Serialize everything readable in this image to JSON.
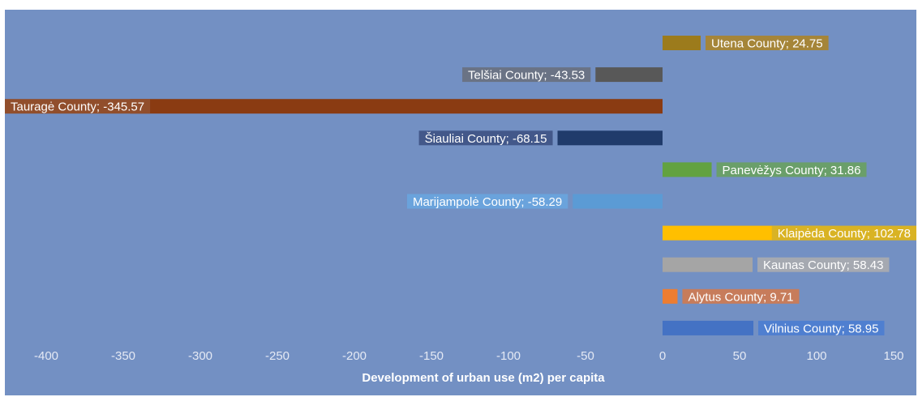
{
  "chart_data": {
    "type": "bar",
    "orientation": "horizontal",
    "title": "",
    "xlabel": "Development of urban use (m2) per capita",
    "ylabel": "",
    "xlim": [
      -400,
      160
    ],
    "xticks": [
      -400,
      -350,
      -300,
      -250,
      -200,
      -150,
      -100,
      -50,
      0,
      50,
      100,
      150
    ],
    "grid": false,
    "legend": "none",
    "background": "#7390c3",
    "categories": [
      "Utena County",
      "Telšiai County",
      "Tauragė County",
      "Šiauliai County",
      "Panevėžys County",
      "Marijampolė County",
      "Klaipėda County",
      "Kaunas County",
      "Alytus County",
      "Vilnius County"
    ],
    "values": [
      24.75,
      -43.53,
      -345.57,
      -68.15,
      31.86,
      -58.29,
      102.78,
      58.43,
      9.71,
      58.95
    ],
    "labels": [
      "Utena County; 24.75",
      "Telšiai County; -43.53",
      "Tauragė County; -345.57",
      "Šiauliai County; -68.15",
      "Panevėžys County; 31.86",
      "Marijampolė County; -58.29",
      "Klaipėda County; 102.78",
      "Kaunas County; 58.43",
      "Alytus County; 9.71",
      "Vilnius County; 58.95"
    ],
    "colors": [
      "#9c7b1c",
      "#585858",
      "#8a3b12",
      "#203b6b",
      "#62a240",
      "#5b9bd5",
      "#ffbf00",
      "#a5a5a5",
      "#ed7d31",
      "#4472c4"
    ],
    "label_colors": [
      "#a58539",
      "#6a7385",
      "#914e2c",
      "#43588a",
      "#6a9f6a",
      "#6aa3dc",
      "#d9b324",
      "#a5a9b1",
      "#c77c5b",
      "#4f7fd0"
    ]
  }
}
